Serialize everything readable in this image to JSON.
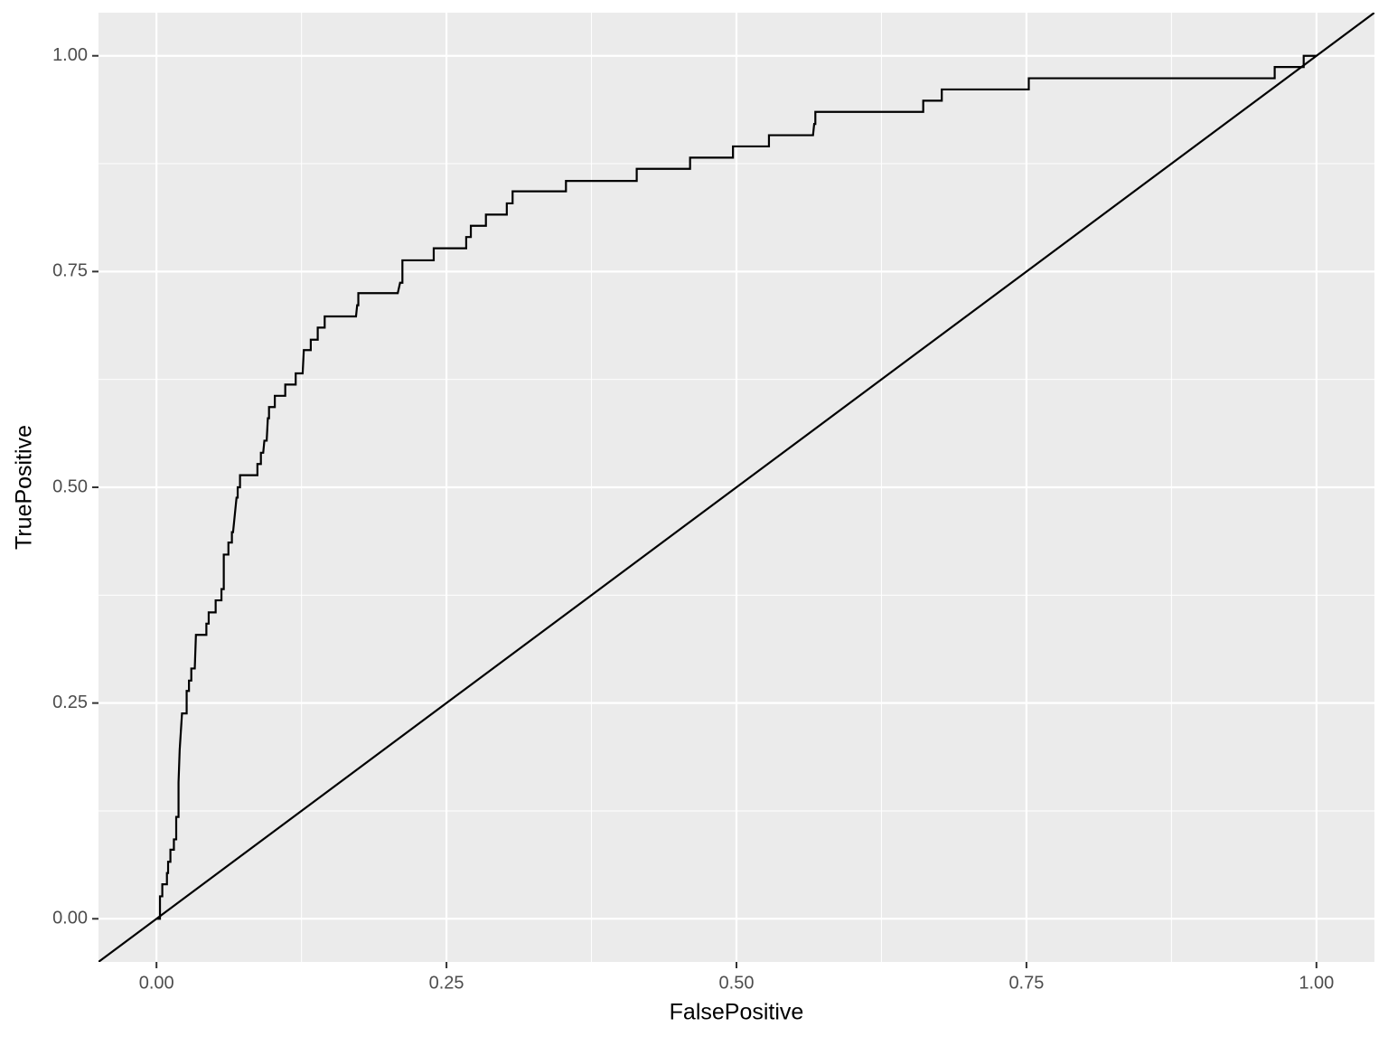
{
  "chart_data": {
    "type": "line",
    "x_label": "FalsePositive",
    "y_label": "TruePositive",
    "x": [
      0,
      0.003,
      0.003,
      0.005,
      0.005,
      0.009,
      0.009,
      0.01,
      0.01,
      0.012,
      0.012,
      0.015,
      0.015,
      0.017,
      0.017,
      0.019,
      0.019,
      0.02,
      0.022,
      0.026,
      0.026,
      0.028,
      0.028,
      0.03,
      0.03,
      0.033,
      0.034,
      0.043,
      0.043,
      0.045,
      0.045,
      0.051,
      0.051,
      0.056,
      0.056,
      0.058,
      0.058,
      0.062,
      0.062,
      0.065,
      0.065,
      0.066,
      0.069,
      0.07,
      0.07,
      0.072,
      0.072,
      0.087,
      0.087,
      0.09,
      0.09,
      0.092,
      0.093,
      0.095,
      0.096,
      0.097,
      0.097,
      0.102,
      0.102,
      0.111,
      0.111,
      0.12,
      0.12,
      0.126,
      0.127,
      0.133,
      0.133,
      0.139,
      0.139,
      0.145,
      0.145,
      0.172,
      0.173,
      0.174,
      0.174,
      0.208,
      0.21,
      0.212,
      0.212,
      0.239,
      0.239,
      0.267,
      0.267,
      0.271,
      0.271,
      0.284,
      0.284,
      0.302,
      0.302,
      0.307,
      0.307,
      0.353,
      0.353,
      0.414,
      0.414,
      0.46,
      0.46,
      0.497,
      0.497,
      0.528,
      0.528,
      0.566,
      0.567,
      0.568,
      0.568,
      0.661,
      0.661,
      0.677,
      0.677,
      0.752,
      0.752,
      0.964,
      0.964,
      0.989,
      0.989,
      1
    ],
    "values": [
      0,
      0,
      0.026,
      0.026,
      0.04,
      0.04,
      0.053,
      0.053,
      0.066,
      0.066,
      0.08,
      0.08,
      0.092,
      0.092,
      0.118,
      0.118,
      0.158,
      0.196,
      0.238,
      0.238,
      0.264,
      0.264,
      0.276,
      0.276,
      0.29,
      0.29,
      0.329,
      0.329,
      0.342,
      0.342,
      0.355,
      0.355,
      0.369,
      0.369,
      0.382,
      0.382,
      0.422,
      0.422,
      0.436,
      0.436,
      0.448,
      0.448,
      0.488,
      0.488,
      0.5,
      0.5,
      0.514,
      0.514,
      0.527,
      0.527,
      0.54,
      0.54,
      0.554,
      0.554,
      0.58,
      0.58,
      0.593,
      0.593,
      0.606,
      0.606,
      0.619,
      0.619,
      0.632,
      0.632,
      0.659,
      0.659,
      0.671,
      0.671,
      0.685,
      0.685,
      0.698,
      0.698,
      0.711,
      0.711,
      0.725,
      0.725,
      0.737,
      0.737,
      0.763,
      0.763,
      0.777,
      0.777,
      0.79,
      0.79,
      0.803,
      0.803,
      0.816,
      0.816,
      0.829,
      0.829,
      0.843,
      0.843,
      0.855,
      0.855,
      0.869,
      0.869,
      0.882,
      0.882,
      0.895,
      0.895,
      0.908,
      0.908,
      0.921,
      0.921,
      0.935,
      0.935,
      0.948,
      0.948,
      0.961,
      0.961,
      0.974,
      0.974,
      0.987,
      0.987,
      1,
      1
    ],
    "color": "#000000",
    "reference_line": {
      "slope": 1,
      "intercept": 0
    },
    "xlim": [
      -0.05,
      1.05
    ],
    "ylim": [
      -0.05,
      1.05
    ],
    "xticks": [
      {
        "value": 0,
        "label": "0.00"
      },
      0.25,
      {
        "value": 0.5,
        "label": "0.50"
      },
      0.75,
      {
        "value": 1,
        "label": "1.00"
      }
    ],
    "yticks": [
      {
        "value": 0,
        "label": "0.00"
      },
      0.25,
      {
        "value": 0.5,
        "label": "0.50"
      },
      0.75,
      {
        "value": 1,
        "label": "1.00"
      }
    ],
    "xminor": [
      0.125,
      0.375,
      0.625,
      0.875
    ],
    "yminor": [
      0.125,
      0.375,
      0.625,
      0.875
    ],
    "grid": true
  }
}
